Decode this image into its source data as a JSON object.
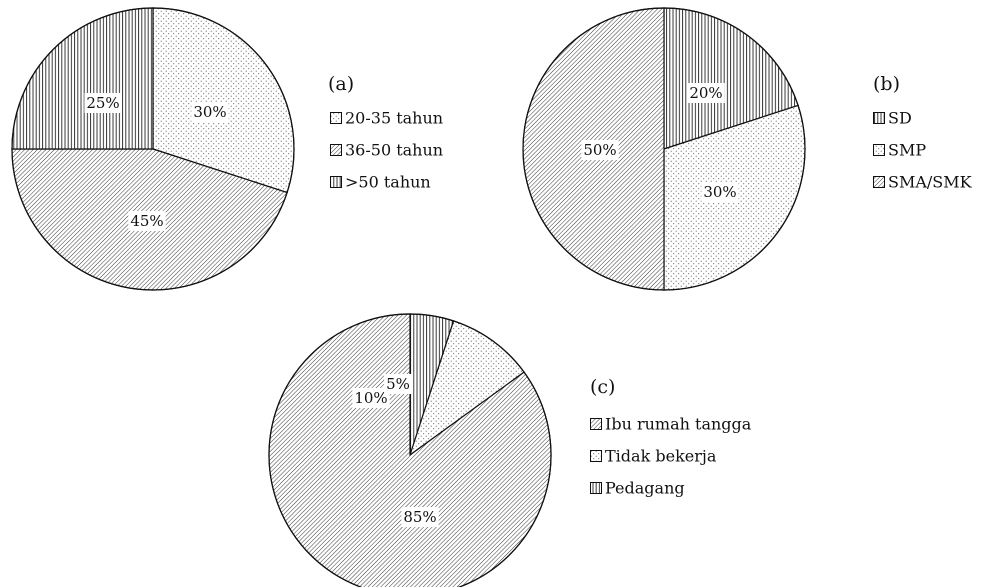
{
  "chart_data": [
    {
      "type": "pie",
      "panel_label": "(a)",
      "slices": [
        {
          "label": "20-35 tahun",
          "value": 30,
          "value_label": "30%",
          "pattern": "dots"
        },
        {
          "label": "36-50 tahun",
          "value": 45,
          "value_label": "45%",
          "pattern": "diagonal"
        },
        {
          "label": ">50 tahun",
          "value": 25,
          "value_label": "25%",
          "pattern": "vertical"
        }
      ],
      "legend_order": [
        0,
        1,
        2
      ]
    },
    {
      "type": "pie",
      "panel_label": "(b)",
      "slices": [
        {
          "label": "SD",
          "value": 20,
          "value_label": "20%",
          "pattern": "vertical"
        },
        {
          "label": "SMP",
          "value": 30,
          "value_label": "30%",
          "pattern": "dots"
        },
        {
          "label": "SMA/SMK",
          "value": 50,
          "value_label": "50%",
          "pattern": "diagonal"
        }
      ],
      "legend_order": [
        0,
        1,
        2
      ]
    },
    {
      "type": "pie",
      "panel_label": "(c)",
      "slices": [
        {
          "label": "Ibu rumah tangga",
          "value": 85,
          "value_label": "85%",
          "pattern": "diagonal"
        },
        {
          "label": "Tidak bekerja",
          "value": 10,
          "value_label": "10%",
          "pattern": "dots"
        },
        {
          "label": "Pedagang",
          "value": 5,
          "value_label": "5%",
          "pattern": "vertical"
        }
      ],
      "draw_order": [
        2,
        1,
        0
      ],
      "legend_order": [
        0,
        1,
        2
      ]
    }
  ]
}
